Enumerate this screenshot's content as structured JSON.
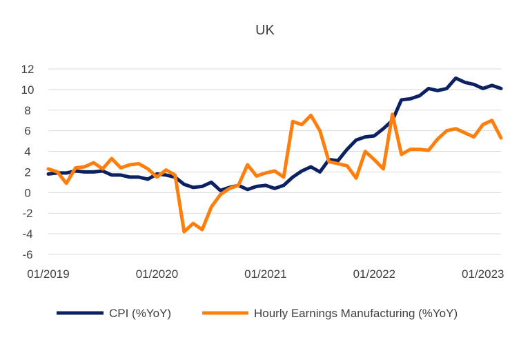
{
  "chart_data": {
    "type": "line",
    "title": "UK",
    "xlabel": "",
    "ylabel": "",
    "ylim": [
      -6,
      12
    ],
    "yticks": [
      -6,
      -4,
      -2,
      0,
      2,
      4,
      6,
      8,
      10,
      12
    ],
    "grid": true,
    "legend_position": "bottom",
    "x_tick_labels": [
      "01/2019",
      "01/2020",
      "01/2021",
      "01/2022",
      "01/2023"
    ],
    "x_start": "01/2019",
    "x_end": "03/2023",
    "series": [
      {
        "name": "CPI (%YoY)",
        "color": "#0b2161",
        "values": [
          1.8,
          1.9,
          1.9,
          2.1,
          2.0,
          2.0,
          2.1,
          1.7,
          1.7,
          1.5,
          1.5,
          1.3,
          1.8,
          1.7,
          1.5,
          0.8,
          0.5,
          0.6,
          1.0,
          0.2,
          0.5,
          0.7,
          0.3,
          0.6,
          0.7,
          0.4,
          0.7,
          1.5,
          2.1,
          2.5,
          2.0,
          3.2,
          3.1,
          4.2,
          5.1,
          5.4,
          5.5,
          6.2,
          7.0,
          9.0,
          9.1,
          9.4,
          10.1,
          9.9,
          10.1,
          11.1,
          10.7,
          10.5,
          10.1,
          10.4,
          10.1
        ]
      },
      {
        "name": "Hourly Earnings Manufacturing (%YoY)",
        "color": "#ff7f0e",
        "values": [
          2.3,
          2.0,
          0.9,
          2.4,
          2.5,
          2.9,
          2.3,
          3.3,
          2.4,
          2.7,
          2.8,
          2.3,
          1.5,
          2.2,
          1.7,
          -3.8,
          -3.0,
          -3.6,
          -1.4,
          -0.2,
          0.4,
          0.7,
          2.7,
          1.6,
          1.9,
          2.1,
          1.5,
          6.9,
          6.6,
          7.5,
          6.0,
          3.0,
          2.8,
          2.6,
          1.4,
          4.0,
          3.2,
          2.3,
          7.6,
          3.7,
          4.2,
          4.2,
          4.1,
          5.2,
          6.0,
          6.2,
          5.8,
          5.4,
          6.6,
          7.0,
          5.3
        ]
      }
    ]
  }
}
